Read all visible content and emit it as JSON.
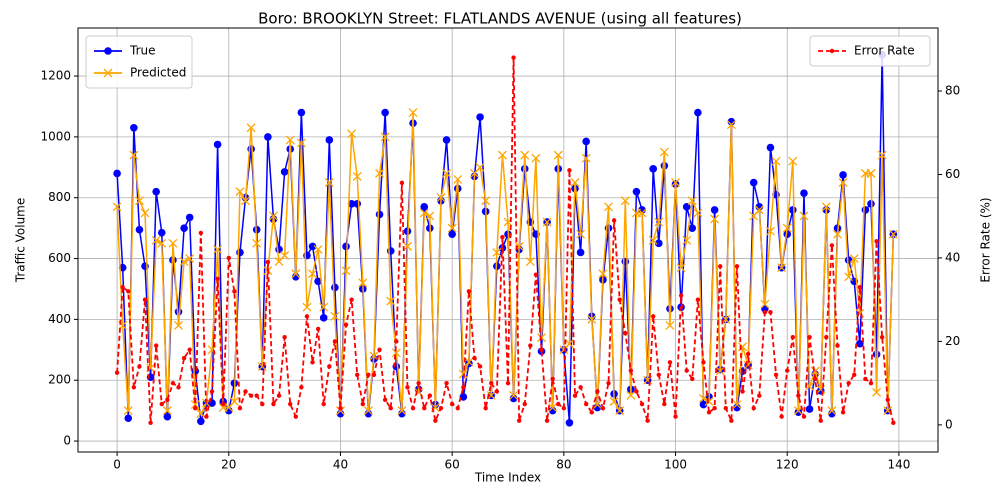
{
  "chart_data": {
    "type": "line",
    "title": "Boro: BROOKLYN Street: FLATLANDS AVENUE (using all features)",
    "xlabel": "Time Index",
    "ylabel": "Traffic Volume",
    "y2label": "Error Rate (%)",
    "x": [
      0,
      1,
      2,
      3,
      4,
      5,
      6,
      7,
      8,
      9,
      10,
      11,
      12,
      13,
      14,
      15,
      16,
      17,
      18,
      19,
      20,
      21,
      22,
      23,
      24,
      25,
      26,
      27,
      28,
      29,
      30,
      31,
      32,
      33,
      34,
      35,
      36,
      37,
      38,
      39,
      40,
      41,
      42,
      43,
      44,
      45,
      46,
      47,
      48,
      49,
      50,
      51,
      52,
      53,
      54,
      55,
      56,
      57,
      58,
      59,
      60,
      61,
      62,
      63,
      64,
      65,
      66,
      67,
      68,
      69,
      70,
      71,
      72,
      73,
      74,
      75,
      76,
      77,
      78,
      79,
      80,
      81,
      82,
      83,
      84,
      85,
      86,
      87,
      88,
      89,
      90,
      91,
      92,
      93,
      94,
      95,
      96,
      97,
      98,
      99,
      100,
      101,
      102,
      103,
      104,
      105,
      106,
      107,
      108,
      109,
      110,
      111,
      112,
      113,
      114,
      115,
      116,
      117,
      118,
      119,
      120,
      121,
      122,
      123,
      124,
      125,
      126,
      127,
      128,
      129,
      130,
      131,
      132,
      133,
      134,
      135,
      136,
      137,
      138,
      139
    ],
    "series": [
      {
        "name": "True",
        "color": "#0000ff",
        "marker": "o",
        "linestyle": "solid",
        "values": [
          880,
          570,
          75,
          1030,
          695,
          575,
          210,
          820,
          685,
          80,
          595,
          425,
          700,
          735,
          230,
          65,
          125,
          125,
          975,
          130,
          100,
          190,
          620,
          800,
          960,
          695,
          245,
          1000,
          730,
          630,
          885,
          960,
          540,
          1080,
          610,
          640,
          525,
          405,
          990,
          505,
          90,
          640,
          780,
          780,
          500,
          90,
          270,
          745,
          1080,
          625,
          245,
          90,
          690,
          1045,
          170,
          770,
          700,
          120,
          790,
          990,
          680,
          830,
          145,
          255,
          870,
          1065,
          755,
          150,
          575,
          635,
          680,
          140,
          630,
          895,
          720,
          680,
          295,
          720,
          100,
          895,
          300,
          60,
          830,
          620,
          985,
          410,
          110,
          530,
          700,
          155,
          100,
          590,
          170,
          820,
          760,
          200,
          895,
          650,
          905,
          435,
          845,
          440,
          770,
          700,
          1080,
          120,
          145,
          760,
          235,
          400,
          1050,
          110,
          230,
          250,
          850,
          770,
          435,
          965,
          810,
          570,
          680,
          760,
          95,
          815,
          105,
          220,
          165,
          760,
          90,
          700,
          875,
          595,
          525,
          320,
          760,
          780,
          285,
          1270,
          100,
          680
        ]
      },
      {
        "name": "Predicted",
        "color": "#ffa500",
        "marker": "x",
        "linestyle": "solid",
        "values": [
          770,
          380,
          100,
          940,
          790,
          750,
          240,
          660,
          650,
          100,
          650,
          380,
          590,
          600,
          120,
          90,
          125,
          300,
          630,
          110,
          110,
          130,
          820,
          790,
          1030,
          650,
          245,
          560,
          740,
          590,
          610,
          990,
          550,
          980,
          440,
          550,
          630,
          440,
          850,
          410,
          100,
          560,
          1010,
          870,
          520,
          100,
          280,
          880,
          1000,
          460,
          290,
          100,
          640,
          1080,
          160,
          750,
          740,
          110,
          800,
          880,
          700,
          860,
          220,
          260,
          880,
          900,
          790,
          150,
          620,
          940,
          720,
          150,
          640,
          940,
          590,
          930,
          340,
          720,
          110,
          940,
          300,
          320,
          850,
          680,
          930,
          400,
          120,
          550,
          770,
          130,
          100,
          790,
          150,
          750,
          750,
          200,
          660,
          720,
          950,
          380,
          850,
          570,
          660,
          790,
          750,
          140,
          130,
          730,
          230,
          400,
          1040,
          120,
          310,
          250,
          740,
          760,
          450,
          690,
          920,
          570,
          700,
          920,
          100,
          740,
          180,
          230,
          170,
          770,
          100,
          680,
          850,
          540,
          600,
          420,
          880,
          880,
          160,
          940,
          100,
          680
        ]
      },
      {
        "name": "Error Rate",
        "color": "#ff0000",
        "marker": ".",
        "linestyle": "dashed",
        "axis": "y2",
        "values": [
          12.5,
          33,
          32,
          9,
          14,
          30,
          0.5,
          19,
          5,
          6,
          10,
          9,
          16,
          18,
          4,
          46,
          2,
          8,
          35,
          5,
          40,
          32,
          4,
          8,
          7,
          7,
          5,
          39,
          5,
          7,
          21,
          5,
          2,
          9,
          26,
          15,
          23,
          5,
          14,
          20,
          4,
          24,
          30,
          12,
          5,
          12,
          12,
          18,
          6,
          4,
          20,
          58,
          9,
          4,
          10,
          4,
          7,
          1,
          4,
          10,
          5,
          4,
          9,
          32,
          16,
          14,
          4,
          10,
          8,
          45,
          10,
          88,
          1,
          5,
          19,
          36,
          18,
          1,
          11,
          5,
          4,
          61,
          7,
          9,
          5,
          3,
          8,
          4,
          10,
          49,
          30,
          22,
          13,
          8,
          5,
          1,
          26,
          12,
          5,
          15,
          2,
          31,
          13,
          11,
          30,
          15,
          3,
          4,
          38,
          4,
          1,
          38,
          8,
          17,
          4,
          7,
          27,
          27,
          12,
          2,
          13,
          21,
          7,
          2,
          21,
          11,
          1,
          21,
          43,
          19,
          3,
          10,
          12,
          33,
          11,
          10,
          44,
          21,
          6,
          0.5
        ]
      }
    ],
    "xlim": [
      -7,
      147
    ],
    "xticks": [
      0,
      20,
      40,
      60,
      80,
      100,
      120,
      140
    ],
    "ylim": [
      -36,
      1358
    ],
    "yticks": [
      0,
      200,
      400,
      600,
      800,
      1000,
      1200
    ],
    "y2lim": [
      -6.5,
      95.1
    ],
    "y2ticks": [
      0,
      20,
      40,
      60,
      80
    ],
    "grid": true,
    "legend_loc": "upper left",
    "y2_legend_loc": "upper right"
  }
}
